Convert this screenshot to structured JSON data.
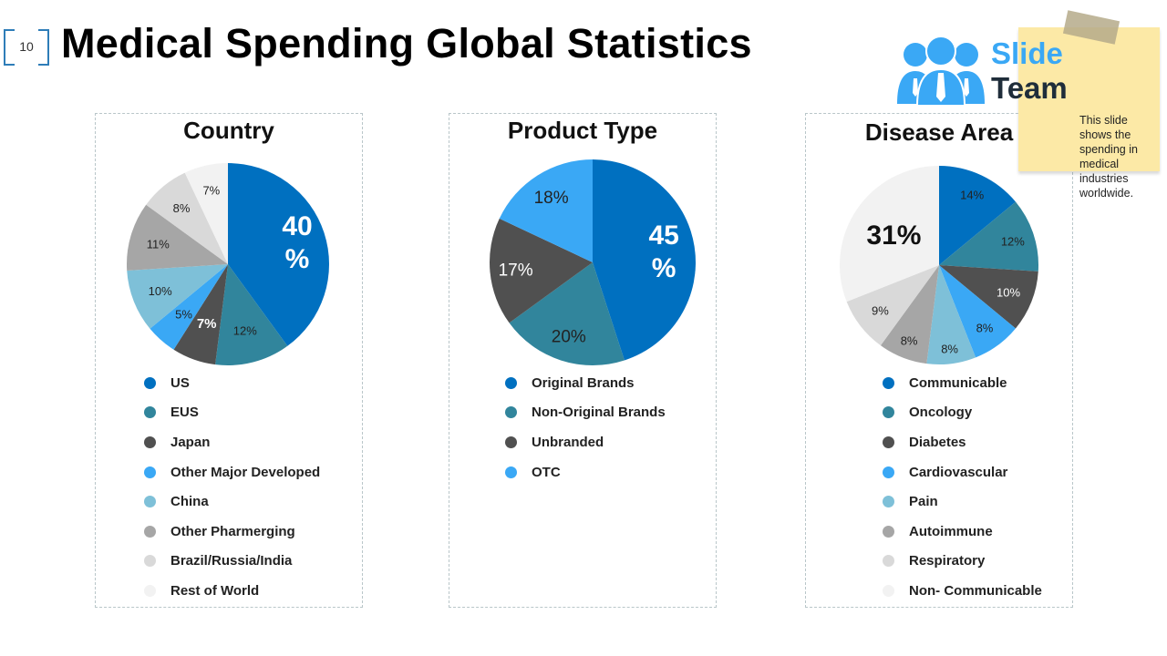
{
  "slide_number": "10",
  "title": "Medical Spending Global Statistics",
  "logo": {
    "word1": "Slide",
    "word2": "Team"
  },
  "note": "This slide shows the spending in medical industries worldwide.",
  "colors": [
    "#0070C0",
    "#31859C",
    "#505050",
    "#3AA8F5",
    "#7EC0D8",
    "#A6A6A6",
    "#D9D9D9",
    "#F2F2F2"
  ],
  "chart_data": [
    {
      "type": "pie",
      "title": "Country",
      "categories": [
        "US",
        "EUS",
        "Japan",
        "Other Major Developed",
        "China",
        "Other Pharmerging",
        "Brazil/Russia/India",
        "Rest of World"
      ],
      "values": [
        40,
        12,
        7,
        5,
        10,
        11,
        8,
        7
      ],
      "labels": [
        "40 %",
        "12%",
        "7%",
        "5%",
        "10%",
        "11%",
        "8%",
        "7%"
      ],
      "legend": "bottom"
    },
    {
      "type": "pie",
      "title": "Product Type",
      "categories": [
        "Original Brands",
        "Non-Original Brands",
        "Unbranded",
        "OTC"
      ],
      "values": [
        45,
        20,
        17,
        18
      ],
      "labels": [
        "45 %",
        "20%",
        "17%",
        "18%"
      ],
      "legend": "bottom"
    },
    {
      "type": "pie",
      "title": "Disease Area",
      "categories": [
        "Communicable",
        "Oncology",
        "Diabetes",
        "Cardiovascular",
        "Pain",
        "Autoimmune",
        "Respiratory",
        "Non- Communicable"
      ],
      "values": [
        14,
        12,
        10,
        8,
        8,
        8,
        9,
        31
      ],
      "labels": [
        "14%",
        "12%",
        "10%",
        "8%",
        "8%",
        "8%",
        "9%",
        "31%"
      ],
      "legend": "bottom"
    }
  ]
}
